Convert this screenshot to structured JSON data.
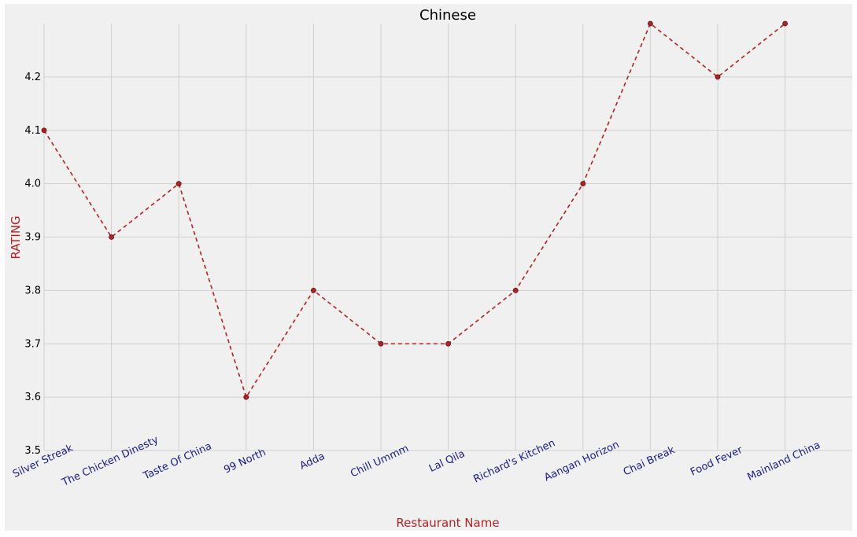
{
  "chart_data": {
    "type": "line",
    "title": "Chinese",
    "xlabel": "Restaurant Name",
    "ylabel": "RATING",
    "categories": [
      "Silver Streak",
      "The Chicken Dinesty",
      "Taste Of China",
      "99 North",
      "Adda",
      "Chill Ummm",
      "Lal Qila",
      "Richard's Kitchen",
      "Aangan Horizon",
      "Chai Break",
      "Food Fever",
      "Mainland China"
    ],
    "series": [
      {
        "values": [
          4.1,
          3.9,
          4.0,
          3.6,
          3.8,
          3.7,
          3.7,
          3.8,
          4.0,
          4.3,
          4.2,
          4.3
        ]
      }
    ],
    "ylim": [
      3.5,
      4.3
    ],
    "yticks": [
      "3.5",
      "3.6",
      "3.7",
      "3.8",
      "3.9",
      "4.0",
      "4.1",
      "4.2"
    ],
    "grid": true,
    "line_style": "dashed",
    "colors": {
      "line": "#b22222",
      "marker_edge": "#5a1010",
      "plot_background": "#f0f0f0",
      "grid": "#d0d0d0",
      "x_tick_text": "#1a1a8c",
      "axis_label": "#b22222"
    }
  }
}
